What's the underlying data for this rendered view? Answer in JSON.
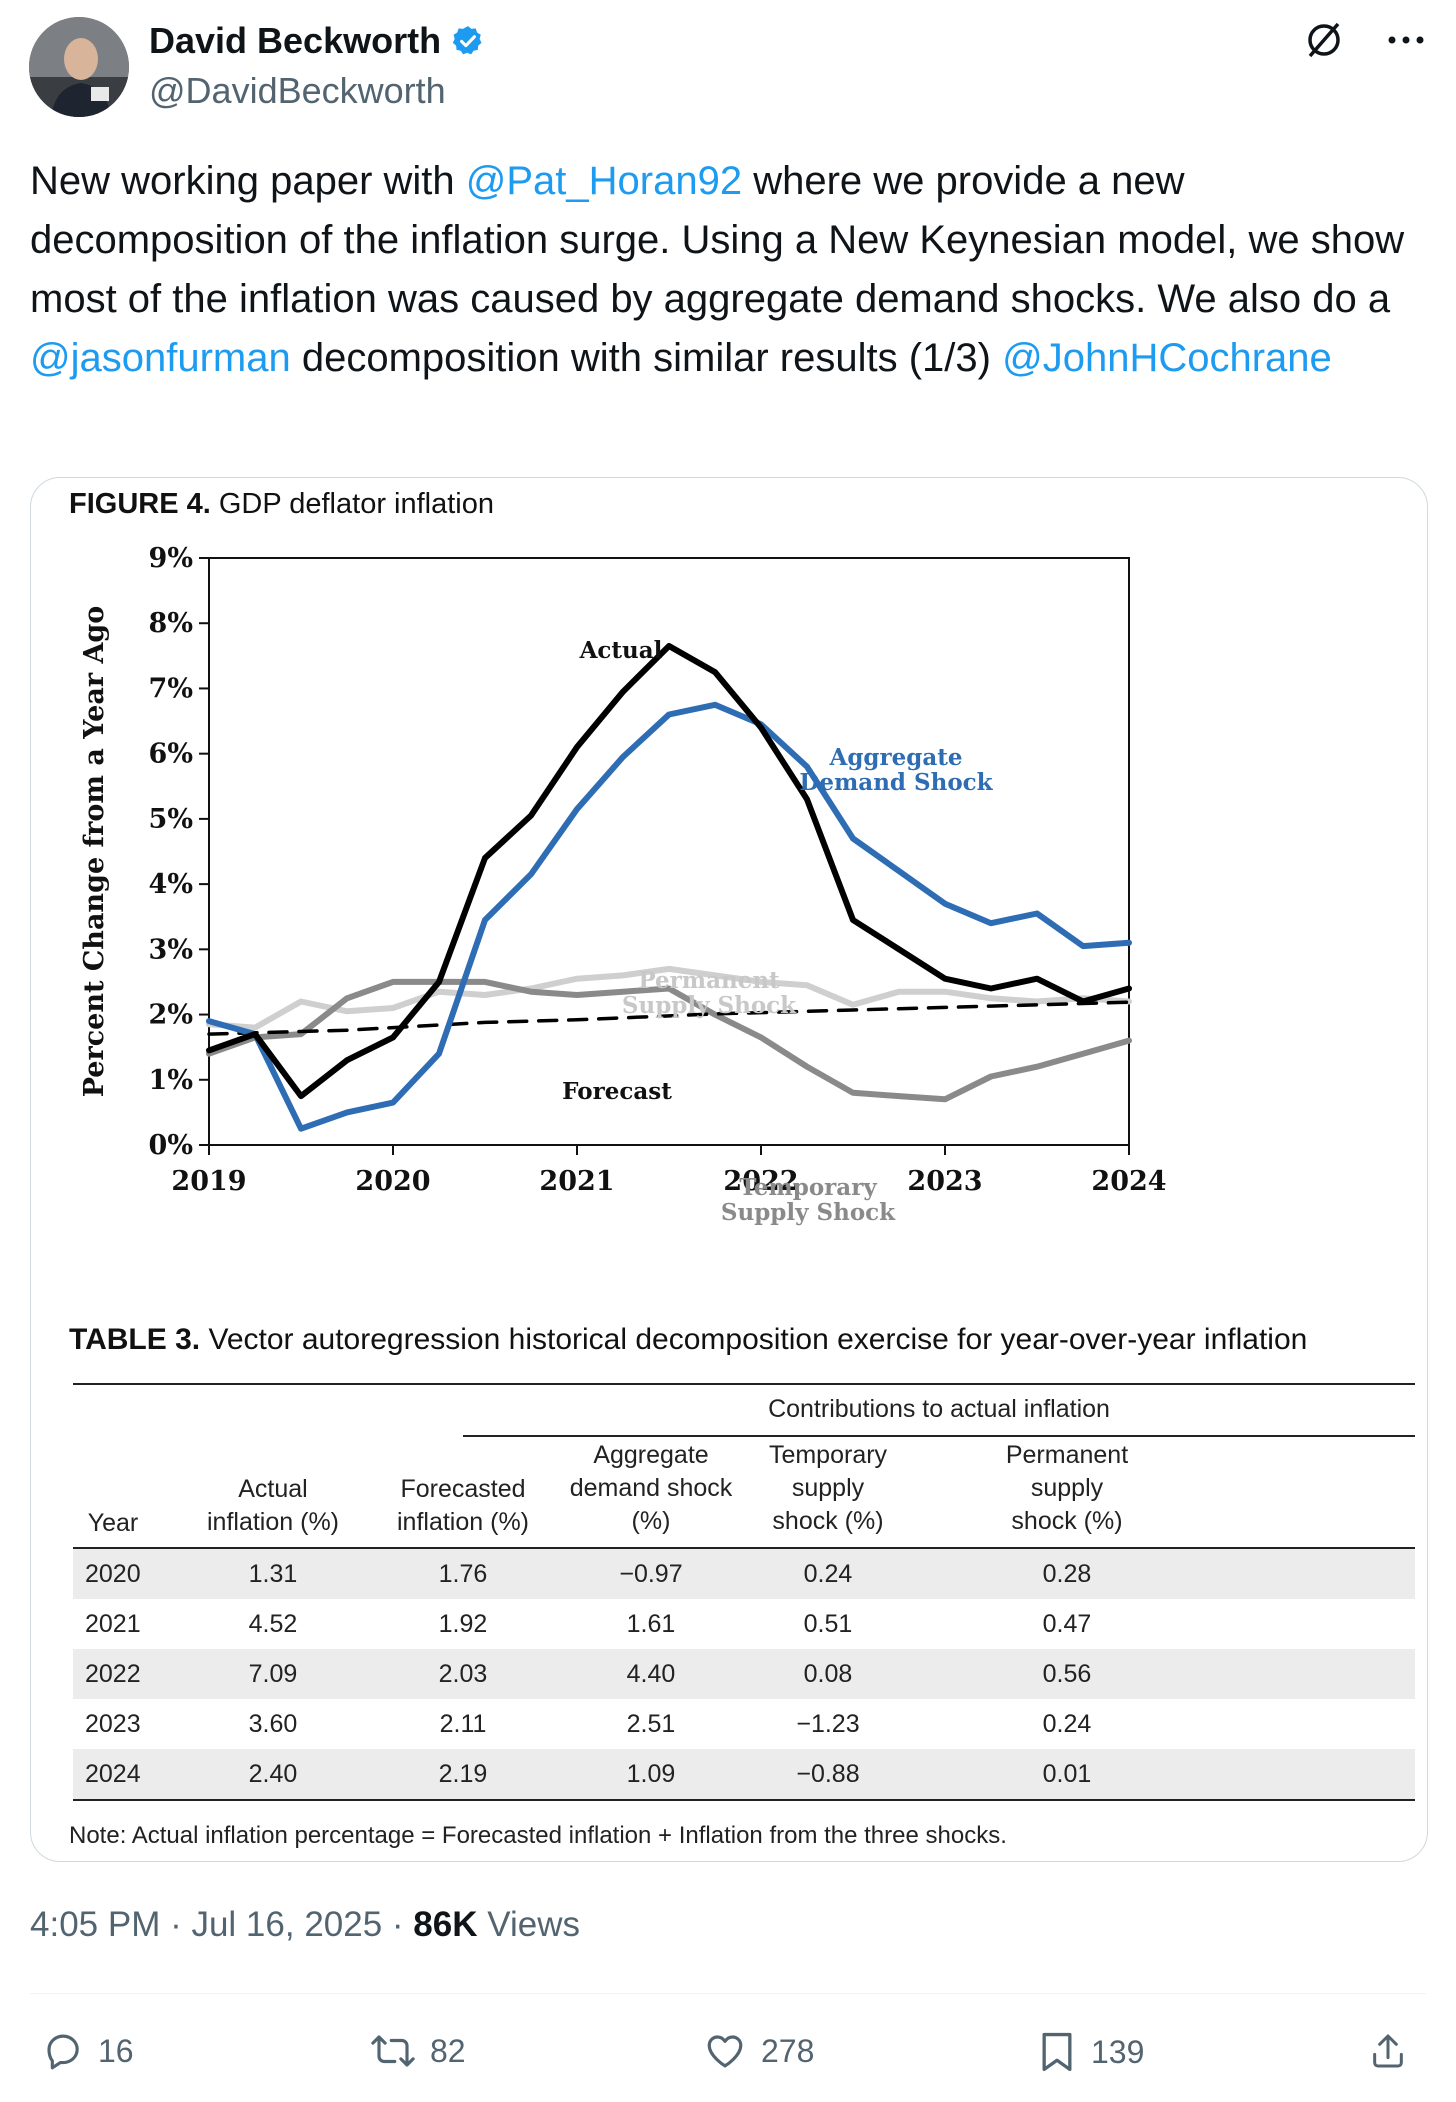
{
  "author": {
    "name": "David Beckworth",
    "handle": "@DavidBeckworth",
    "verified": true
  },
  "tweet": {
    "text_parts": [
      {
        "text": "New working paper with ",
        "type": "text"
      },
      {
        "text": "@Pat_Horan92",
        "type": "mention"
      },
      {
        "text": " where we provide a new decomposition of the inflation surge.  Using a New Keynesian model, we show most of the inflation was caused by aggregate demand shocks. We also do a ",
        "type": "text"
      },
      {
        "text": "@jasonfurman",
        "type": "mention"
      },
      {
        "text": " decomposition with similar results (1/3) ",
        "type": "text"
      },
      {
        "text": "@JohnHCochrane",
        "type": "mention"
      }
    ]
  },
  "figure": {
    "label": "FIGURE 4.",
    "title": " GDP deflator inflation"
  },
  "chart_data": {
    "type": "line",
    "ylabel": "Percent Change from a Year Ago",
    "ylim": [
      0,
      9
    ],
    "yticks": [
      "0%",
      "1%",
      "2%",
      "3%",
      "4%",
      "5%",
      "6%",
      "7%",
      "8%",
      "9%"
    ],
    "xticks": [
      "2019",
      "2020",
      "2021",
      "2022",
      "2023",
      "2024"
    ],
    "xlim": [
      2019,
      2024
    ],
    "x": [
      2019.0,
      2019.25,
      2019.5,
      2019.75,
      2020.0,
      2020.25,
      2020.5,
      2020.75,
      2021.0,
      2021.25,
      2021.5,
      2021.75,
      2022.0,
      2022.25,
      2022.5,
      2022.75,
      2023.0,
      2023.25,
      2023.5,
      2023.75,
      2024.0
    ],
    "series": [
      {
        "name": "Actual",
        "label": "Actual",
        "color": "#000000",
        "dash": false,
        "values": [
          1.45,
          1.7,
          0.75,
          1.3,
          1.65,
          2.5,
          4.4,
          5.05,
          6.1,
          6.95,
          7.65,
          7.25,
          6.4,
          5.3,
          3.45,
          3.0,
          2.55,
          2.4,
          2.55,
          2.2,
          2.4
        ]
      },
      {
        "name": "Aggregate Demand Shock",
        "label": "Aggregate Demand Shock",
        "color": "#2e6db4",
        "dash": false,
        "values": [
          1.9,
          1.7,
          0.25,
          0.5,
          0.65,
          1.4,
          3.45,
          4.15,
          5.15,
          5.95,
          6.6,
          6.75,
          6.45,
          5.8,
          4.7,
          4.2,
          3.7,
          3.4,
          3.55,
          3.05,
          3.1
        ]
      },
      {
        "name": "Permanent Supply Shock",
        "label": "Permanent Supply Shock",
        "color": "#cfcfcf",
        "dash": false,
        "values": [
          1.85,
          1.8,
          2.2,
          2.05,
          2.1,
          2.35,
          2.3,
          2.4,
          2.55,
          2.6,
          2.7,
          2.6,
          2.5,
          2.45,
          2.15,
          2.35,
          2.35,
          2.25,
          2.2,
          2.25,
          2.2
        ]
      },
      {
        "name": "Temporary Supply Shock",
        "label": "Temporary Supply Shock",
        "color": "#8a8a8a",
        "dash": false,
        "values": [
          1.4,
          1.65,
          1.7,
          2.25,
          2.5,
          2.5,
          2.5,
          2.35,
          2.3,
          2.35,
          2.4,
          2.0,
          1.65,
          1.2,
          0.8,
          0.75,
          0.7,
          1.05,
          1.2,
          1.4,
          1.6
        ]
      },
      {
        "name": "Forecast",
        "label": "Forecast",
        "color": "#000000",
        "dash": true,
        "values": [
          1.7,
          1.72,
          1.74,
          1.76,
          1.8,
          1.84,
          1.88,
          1.9,
          1.92,
          1.95,
          1.98,
          2.01,
          2.03,
          2.05,
          2.07,
          2.09,
          2.11,
          2.13,
          2.15,
          2.17,
          2.19
        ]
      }
    ]
  },
  "table": {
    "label": "TABLE 3.",
    "title": " Vector autoregression historical decomposition exercise for year-over-year inflation",
    "group_header": "Contributions to actual inflation",
    "headers": [
      [
        "Year"
      ],
      [
        "Actual",
        "inflation (%)"
      ],
      [
        "Forecasted",
        "inflation (%)"
      ],
      [
        "Aggregate",
        "demand shock",
        "(%)"
      ],
      [
        "Temporary",
        "supply",
        "shock (%)"
      ],
      [
        "Permanent",
        "supply",
        "shock (%)"
      ]
    ],
    "rows": [
      [
        "2020",
        "1.31",
        "1.76",
        "−0.97",
        "0.24",
        "0.28"
      ],
      [
        "2021",
        "4.52",
        "1.92",
        "1.61",
        "0.51",
        "0.47"
      ],
      [
        "2022",
        "7.09",
        "2.03",
        "4.40",
        "0.08",
        "0.56"
      ],
      [
        "2023",
        "3.60",
        "2.11",
        "2.51",
        "−1.23",
        "0.24"
      ],
      [
        "2024",
        "2.40",
        "2.19",
        "1.09",
        "−0.88",
        "0.01"
      ]
    ],
    "note": "Note: Actual inflation percentage = Forecasted inflation + Inflation from the three shocks."
  },
  "meta": {
    "time": "4:05 PM",
    "date": "Jul 16, 2025",
    "views_count": "86K",
    "views_label": "Views"
  },
  "actions": {
    "replies": "16",
    "reposts": "82",
    "likes": "278",
    "bookmarks": "139"
  }
}
